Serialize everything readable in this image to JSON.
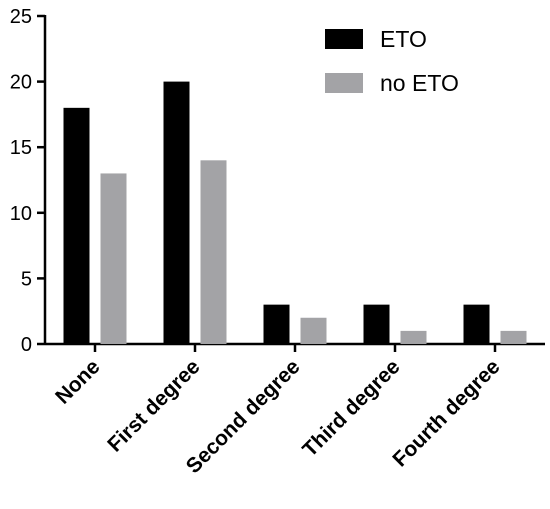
{
  "chart_data": {
    "type": "bar",
    "categories": [
      "None",
      "First degree",
      "Second degree",
      "Third degree",
      "Fourth degree"
    ],
    "series": [
      {
        "name": "ETO",
        "values": [
          18,
          20,
          3,
          3,
          3
        ],
        "color": "#000000"
      },
      {
        "name": "no ETO",
        "values": [
          13,
          14,
          2,
          1,
          1
        ],
        "color": "#a3a3a6"
      }
    ],
    "ylim": [
      0,
      25
    ],
    "yticks": [
      0,
      5,
      10,
      15,
      20,
      25
    ],
    "xlabel": "",
    "ylabel": "",
    "title": "",
    "legend_position": "top-right",
    "grid": false
  }
}
